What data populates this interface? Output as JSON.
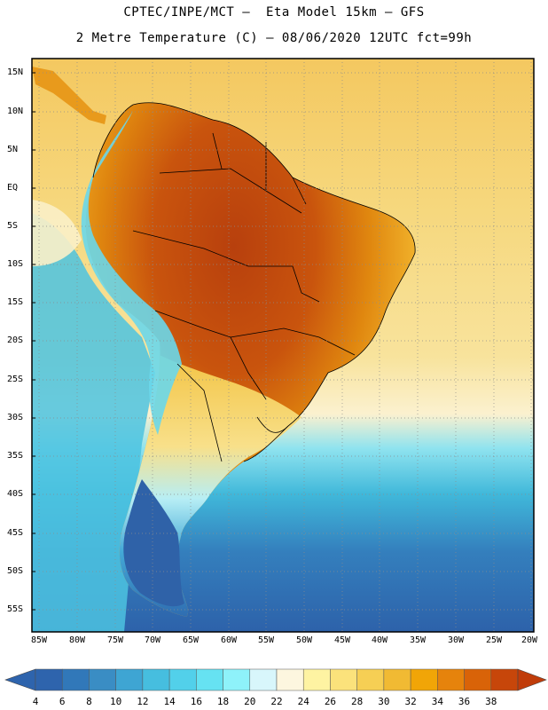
{
  "header": {
    "title_line1": "CPTEC/INPE/MCT –  Eta Model 15km – GFS",
    "title_line2": "2 Metre Temperature (C) – 08/06/2020 12UTC fct=99h"
  },
  "map": {
    "lat_labels": [
      "15N",
      "10N",
      "5N",
      "EQ",
      "5S",
      "10S",
      "15S",
      "20S",
      "25S",
      "30S",
      "35S",
      "40S",
      "45S",
      "50S",
      "55S"
    ],
    "lon_labels": [
      "85W",
      "80W",
      "75W",
      "70W",
      "65W",
      "60W",
      "55W",
      "50W",
      "45W",
      "40W",
      "35W",
      "30W",
      "25W",
      "20W"
    ],
    "colors": {
      "ocean_warm": "#f4d676",
      "ocean_mid": "#f8ecb4",
      "ocean_cool": "#3fb5d8",
      "ocean_cold": "#2d6fb1",
      "land_hot": "#c1490f",
      "land_warm": "#e0890f",
      "andes_cool": "#63d5ea",
      "border": "#000000",
      "grid": "#9a9a9a"
    }
  },
  "colorbar": {
    "labels": [
      "4",
      "6",
      "8",
      "10",
      "12",
      "14",
      "16",
      "18",
      "20",
      "22",
      "24",
      "26",
      "28",
      "30",
      "32",
      "34",
      "36",
      "38"
    ],
    "colors": [
      "#2e64ad",
      "#3178b9",
      "#3a8dc4",
      "#3ea5d3",
      "#46bedf",
      "#52d0ea",
      "#66e2f2",
      "#8ef2fa",
      "#d8f6fb",
      "#fdf6df",
      "#fef3a2",
      "#fbe27b",
      "#f6cf54",
      "#f1ba33",
      "#f1a507",
      "#e6830c",
      "#d96308",
      "#c7460a"
    ],
    "low_end_color": "#2e64ad",
    "high_end_color": "#c03c0a"
  }
}
